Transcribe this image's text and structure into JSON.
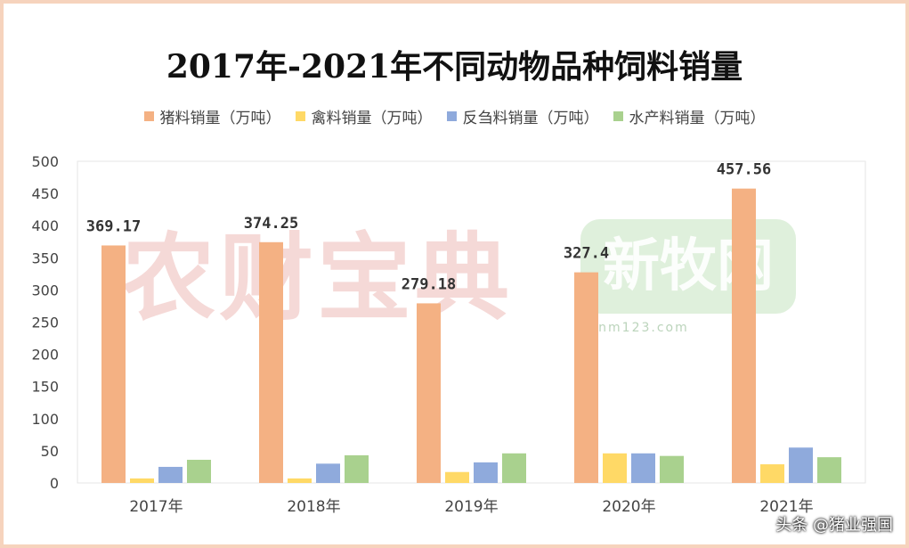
{
  "chart_data": {
    "type": "bar",
    "title": "2017年-2021年不同动物品种饲料销量",
    "categories": [
      "2017年",
      "2018年",
      "2019年",
      "2020年",
      "2021年"
    ],
    "series": [
      {
        "name": "猪料销量（万吨）",
        "color": "#f4b183",
        "values": [
          369.17,
          374.25,
          279.18,
          327.4,
          457.56
        ],
        "labels": [
          "369.17",
          "374.25",
          "279.18",
          "327.4",
          "457.56"
        ]
      },
      {
        "name": "禽料销量（万吨）",
        "color": "#ffd966",
        "values": [
          7,
          7,
          17,
          46,
          29
        ]
      },
      {
        "name": "反刍料销量（万吨）",
        "color": "#8faadc",
        "values": [
          25,
          30,
          32,
          46,
          55
        ]
      },
      {
        "name": "水产料销量（万吨）",
        "color": "#a9d18e",
        "values": [
          36,
          43,
          46,
          42,
          40
        ]
      }
    ],
    "ylim": [
      0,
      500
    ],
    "yticks": [
      "0",
      "50",
      "100",
      "150",
      "200",
      "250",
      "300",
      "350",
      "400",
      "450",
      "500"
    ],
    "legend": "top",
    "grid": false
  },
  "watermarks": {
    "main": "农财宝典",
    "logo": "新牧网",
    "url": "xinm123.com"
  },
  "footer": "头条 @猪业强国"
}
